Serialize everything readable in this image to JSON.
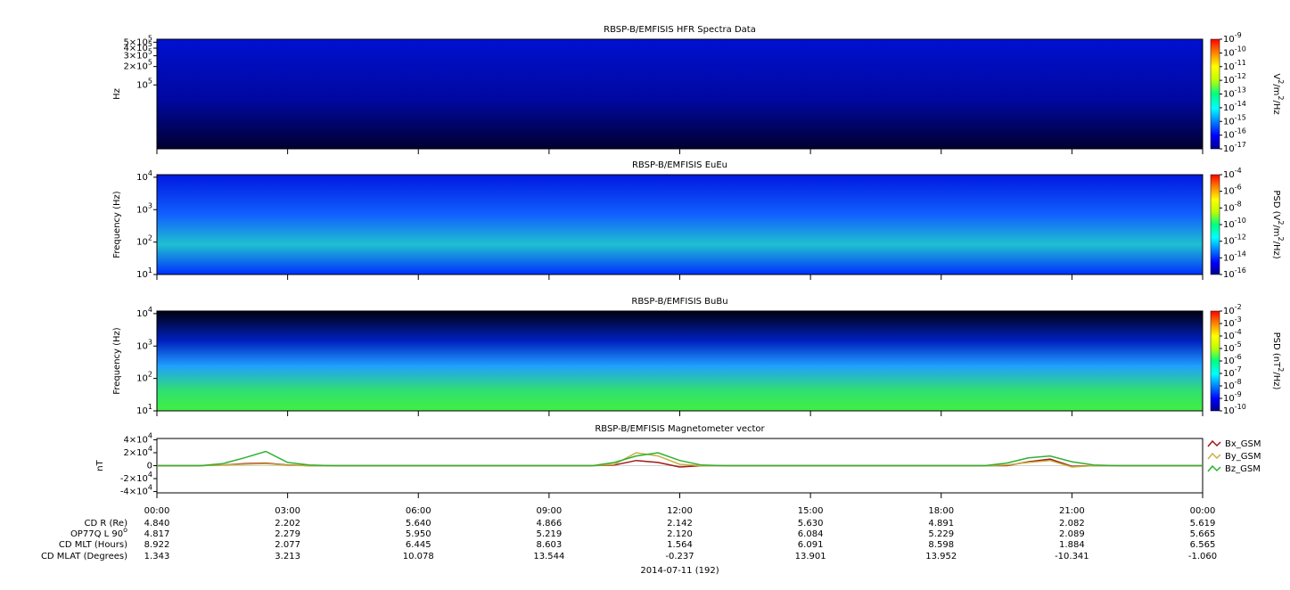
{
  "chart_data": [
    {
      "type": "spectrogram",
      "title": "RBSP-B/EMFISIS  HFR Spectra Data",
      "ylabel": "Hz",
      "log_y": true,
      "ylim": [
        9000,
        560000
      ],
      "yticks": [
        {
          "value": 500000,
          "label": "5×10^5"
        },
        {
          "value": 400000,
          "label": "4×10^5"
        },
        {
          "value": 300000,
          "label": "3×10^5"
        },
        {
          "value": 200000,
          "label": "2×10^5"
        },
        {
          "value": 100000,
          "label": "10^5"
        }
      ],
      "clabel": "V^2/m^2/Hz",
      "clim": [
        1e-17,
        1e-09
      ],
      "cticks": [
        {
          "value": 1e-09,
          "label": "10^-9"
        },
        {
          "value": 1e-10,
          "label": "10^-10"
        },
        {
          "value": 1e-11,
          "label": "10^-11"
        },
        {
          "value": 1e-12,
          "label": "10^-12"
        },
        {
          "value": 1e-13,
          "label": "10^-13"
        },
        {
          "value": 1e-14,
          "label": "10^-14"
        },
        {
          "value": 1e-15,
          "label": "10^-15"
        },
        {
          "value": 1e-16,
          "label": "10^-16"
        },
        {
          "value": 1e-17,
          "label": "10^-17"
        }
      ]
    },
    {
      "type": "spectrogram",
      "title": "RBSP-B/EMFISIS  EuEu",
      "ylabel": "Frequency (Hz)",
      "log_y": true,
      "ylim": [
        10,
        12000
      ],
      "yticks": [
        {
          "value": 10000,
          "label": "10^4"
        },
        {
          "value": 1000,
          "label": "10^3"
        },
        {
          "value": 100,
          "label": "10^2"
        },
        {
          "value": 10,
          "label": "10^1"
        }
      ],
      "clabel": "PSD (V^2/m^2/Hz)",
      "clim": [
        1e-16,
        0.0001
      ],
      "cticks": [
        {
          "value": 0.0001,
          "label": "10^-4"
        },
        {
          "value": 1e-06,
          "label": "10^-6"
        },
        {
          "value": 1e-08,
          "label": "10^-8"
        },
        {
          "value": 1e-10,
          "label": "10^-10"
        },
        {
          "value": 1e-12,
          "label": "10^-12"
        },
        {
          "value": 1e-14,
          "label": "10^-14"
        },
        {
          "value": 1e-16,
          "label": "10^-16"
        }
      ]
    },
    {
      "type": "spectrogram",
      "title": "RBSP-B/EMFISIS  BuBu",
      "ylabel": "Frequency (Hz)",
      "log_y": true,
      "ylim": [
        10,
        12000
      ],
      "yticks": [
        {
          "value": 10000,
          "label": "10^4"
        },
        {
          "value": 1000,
          "label": "10^3"
        },
        {
          "value": 100,
          "label": "10^2"
        },
        {
          "value": 10,
          "label": "10^1"
        }
      ],
      "clabel": "PSD (nT^2/Hz)",
      "clim": [
        1e-10,
        0.01
      ],
      "cticks": [
        {
          "value": 0.01,
          "label": "10^-2"
        },
        {
          "value": 0.001,
          "label": "10^-3"
        },
        {
          "value": 0.0001,
          "label": "10^-4"
        },
        {
          "value": 1e-05,
          "label": "10^-5"
        },
        {
          "value": 1e-06,
          "label": "10^-6"
        },
        {
          "value": 1e-07,
          "label": "10^-7"
        },
        {
          "value": 1e-08,
          "label": "10^-8"
        },
        {
          "value": 1e-09,
          "label": "10^-9"
        },
        {
          "value": 1e-10,
          "label": "10^-10"
        }
      ]
    },
    {
      "type": "line",
      "title": "RBSP-B/EMFISIS  Magnetometer vector",
      "ylabel": "nT",
      "ylim": [
        -42000,
        42000
      ],
      "yticks": [
        {
          "value": 40000,
          "label": "4×10^4"
        },
        {
          "value": 20000,
          "label": "2×10^4"
        },
        0,
        {
          "value": -20000,
          "label": "-2×10^4"
        },
        {
          "value": -40000,
          "label": "-4×10^4"
        }
      ],
      "xlim": [
        0,
        24
      ],
      "xticks": [
        {
          "value": 0,
          "label": "00:00"
        },
        {
          "value": 3,
          "label": "03:00"
        },
        {
          "value": 6,
          "label": "06:00"
        },
        {
          "value": 9,
          "label": "09:00"
        },
        {
          "value": 12,
          "label": "12:00"
        },
        {
          "value": 15,
          "label": "15:00"
        },
        {
          "value": 18,
          "label": "18:00"
        },
        {
          "value": 21,
          "label": "21:00"
        },
        {
          "value": 24,
          "label": "00:00"
        }
      ],
      "x": [
        0,
        0.5,
        1,
        1.5,
        2,
        2.5,
        3,
        3.5,
        4,
        4.5,
        5,
        5.5,
        6,
        6.5,
        7,
        7.5,
        8,
        8.5,
        9,
        9.5,
        10,
        10.5,
        11,
        11.5,
        12,
        12.5,
        13,
        13.5,
        14,
        14.5,
        15,
        15.5,
        16,
        16.5,
        17,
        17.5,
        18,
        18.5,
        19,
        19.5,
        20,
        20.5,
        21,
        21.5,
        22,
        22.5,
        23,
        23.5,
        24
      ],
      "series": [
        {
          "name": "Bx_GSM",
          "color": "#a01818",
          "values": [
            0,
            0,
            0,
            1000,
            3000,
            4000,
            1000,
            0,
            0,
            0,
            0,
            0,
            0,
            0,
            0,
            0,
            0,
            0,
            0,
            0,
            0,
            1000,
            8000,
            5000,
            -2000,
            0,
            0,
            0,
            0,
            0,
            0,
            0,
            0,
            0,
            0,
            0,
            0,
            0,
            0,
            0,
            6000,
            10000,
            -1000,
            0,
            0,
            0,
            0,
            0,
            0
          ]
        },
        {
          "name": "By_GSM",
          "color": "#c8b040",
          "values": [
            0,
            0,
            0,
            1000,
            2000,
            3000,
            500,
            0,
            0,
            0,
            0,
            0,
            0,
            0,
            0,
            0,
            0,
            0,
            0,
            0,
            0,
            2000,
            20000,
            15000,
            2000,
            0,
            0,
            0,
            0,
            0,
            0,
            0,
            0,
            0,
            0,
            0,
            0,
            0,
            0,
            1000,
            5000,
            8000,
            -2000,
            0,
            0,
            0,
            0,
            0,
            0
          ]
        },
        {
          "name": "Bz_GSM",
          "color": "#30b030",
          "values": [
            0,
            0,
            0,
            3000,
            12000,
            22000,
            5000,
            1000,
            0,
            0,
            0,
            0,
            0,
            0,
            0,
            0,
            0,
            0,
            0,
            0,
            0,
            5000,
            15000,
            20000,
            8000,
            1000,
            0,
            0,
            0,
            0,
            0,
            0,
            0,
            0,
            0,
            0,
            0,
            0,
            0,
            4000,
            12000,
            15000,
            6000,
            1000,
            0,
            0,
            0,
            0,
            0
          ]
        }
      ]
    }
  ],
  "ephemeris": {
    "rows": [
      {
        "label": "CD R (Re)",
        "values": [
          "4.840",
          "2.202",
          "5.640",
          "4.866",
          "2.142",
          "5.630",
          "4.891",
          "2.082",
          "5.619"
        ]
      },
      {
        "label": "OP77Q L 90^o",
        "values": [
          "4.817",
          "2.279",
          "5.950",
          "5.219",
          "2.120",
          "6.084",
          "5.229",
          "2.089",
          "5.665"
        ]
      },
      {
        "label": "CD MLT (Hours)",
        "values": [
          "8.922",
          "2.077",
          "6.445",
          "8.603",
          "1.564",
          "6.091",
          "8.598",
          "1.884",
          "6.565"
        ]
      },
      {
        "label": "CD MLAT (Degrees)",
        "values": [
          "1.343",
          "3.213",
          "10.078",
          "13.544",
          "-0.237",
          "13.901",
          "13.952",
          "-10.341",
          "-1.060"
        ]
      }
    ],
    "date": "2014-07-11 (192)"
  }
}
